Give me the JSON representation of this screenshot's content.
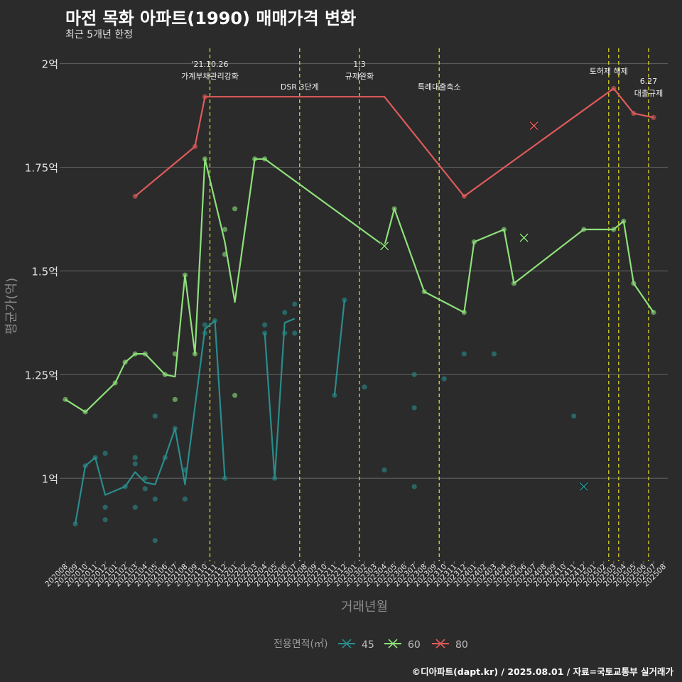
{
  "title": "마전 목화 아파트(1990) 매매가격 변화",
  "subtitle": "최근 5개년 한정",
  "caption": "©디아파트(dapt.kr) / 2025.08.01 / 자료=국토교통부 실거래가",
  "chart_data": {
    "type": "line",
    "title": "마전 목화 아파트(1990) 매매가격 변화",
    "subtitle": "최근 5개년 한정",
    "xlabel": "거래년월",
    "ylabel": "평균가(억)",
    "x_categories": [
      "202008",
      "202009",
      "202010",
      "202011",
      "202012",
      "202101",
      "202102",
      "202103",
      "202104",
      "202105",
      "202106",
      "202107",
      "202108",
      "202109",
      "202110",
      "202111",
      "202112",
      "202201",
      "202202",
      "202203",
      "202204",
      "202205",
      "202206",
      "202207",
      "202208",
      "202209",
      "202210",
      "202211",
      "202212",
      "202301",
      "202302",
      "202303",
      "202304",
      "202305",
      "202306",
      "202307",
      "202308",
      "202309",
      "202310",
      "202311",
      "202312",
      "202401",
      "202402",
      "202403",
      "202404",
      "202405",
      "202406",
      "202407",
      "202408",
      "202409",
      "202410",
      "202411",
      "202412",
      "202501",
      "202502",
      "202503",
      "202504",
      "202505",
      "202506",
      "202507",
      "202508"
    ],
    "y_ticks": [
      1,
      1.25,
      1.5,
      1.75,
      2
    ],
    "y_tick_labels": [
      "1억",
      "1.25억",
      "1.5억",
      "1.75억",
      "2억"
    ],
    "ylim": [
      0.8,
      2.03
    ],
    "grid": "horizontal",
    "legend": {
      "title": "전용면적(㎡)",
      "position": "bottom",
      "entries": [
        "45",
        "60",
        "80"
      ]
    },
    "series": [
      {
        "name": "45",
        "color": "#2a8c8c",
        "line": [
          [
            "202009",
            0.89
          ],
          [
            "202010",
            1.03
          ],
          [
            "202011",
            1.05
          ],
          [
            "202012",
            0.96
          ],
          [
            "202102",
            0.98
          ],
          [
            "202103",
            1.015
          ],
          [
            "202104",
            0.99
          ],
          [
            "202105",
            0.985
          ],
          [
            "202106",
            1.05
          ],
          [
            "202107",
            1.12
          ],
          [
            "202108",
            0.985
          ],
          [
            "202110",
            1.36
          ],
          [
            "202111",
            1.38
          ],
          [
            "202112",
            1.0
          ],
          null,
          [
            "202204",
            1.35
          ],
          [
            "202205",
            1.0
          ],
          [
            "202206",
            1.375
          ],
          [
            "202207",
            1.385
          ],
          null,
          [
            "202211",
            1.2
          ],
          [
            "202212",
            1.43
          ]
        ],
        "points": [
          [
            "202009",
            0.89
          ],
          [
            "202010",
            1.03
          ],
          [
            "202011",
            1.05
          ],
          [
            "202012",
            1.06
          ],
          [
            "202012",
            0.93
          ],
          [
            "202012",
            0.9
          ],
          [
            "202102",
            0.98
          ],
          [
            "202103",
            1.05
          ],
          [
            "202103",
            1.035
          ],
          [
            "202103",
            0.93
          ],
          [
            "202104",
            1.0
          ],
          [
            "202104",
            0.975
          ],
          [
            "202105",
            1.15
          ],
          [
            "202105",
            0.95
          ],
          [
            "202105",
            0.85
          ],
          [
            "202106",
            1.05
          ],
          [
            "202107",
            1.12
          ],
          [
            "202108",
            1.02
          ],
          [
            "202108",
            0.95
          ],
          [
            "202110",
            1.37
          ],
          [
            "202110",
            1.35
          ],
          [
            "202111",
            1.38
          ],
          [
            "202112",
            1.0
          ],
          [
            "202204",
            1.37
          ],
          [
            "202204",
            1.35
          ],
          [
            "202205",
            1.0
          ],
          [
            "202206",
            1.4
          ],
          [
            "202206",
            1.35
          ],
          [
            "202207",
            1.42
          ],
          [
            "202207",
            1.35
          ],
          [
            "202211",
            1.2
          ],
          [
            "202212",
            1.43
          ],
          [
            "202302",
            1.22
          ],
          [
            "202304",
            1.02
          ],
          [
            "202307",
            1.25
          ],
          [
            "202307",
            1.17
          ],
          [
            "202307",
            0.98
          ],
          [
            "202310",
            1.24
          ],
          [
            "202312",
            1.3
          ],
          [
            "202403",
            1.3
          ],
          [
            "202411",
            1.15
          ]
        ],
        "cancelled": [
          [
            "202412",
            0.98
          ]
        ]
      },
      {
        "name": "60",
        "color": "#8ee07a",
        "line": [
          [
            "202008",
            1.19
          ],
          [
            "202010",
            1.16
          ],
          [
            "202101",
            1.23
          ],
          [
            "202102",
            1.28
          ],
          [
            "202103",
            1.3
          ],
          [
            "202104",
            1.3
          ],
          [
            "202106",
            1.25
          ],
          [
            "202107",
            1.245
          ],
          [
            "202108",
            1.49
          ],
          [
            "202109",
            1.3
          ],
          [
            "202110",
            1.77
          ],
          [
            "202112",
            1.57
          ],
          [
            "202201",
            1.425
          ],
          [
            "202203",
            1.77
          ],
          [
            "202204",
            1.77
          ],
          [
            "202304",
            1.56
          ],
          [
            "202305",
            1.65
          ],
          [
            "202308",
            1.45
          ],
          [
            "202312",
            1.4
          ],
          [
            "202401",
            1.57
          ],
          [
            "202404",
            1.6
          ],
          [
            "202405",
            1.47
          ],
          [
            "202412",
            1.6
          ],
          [
            "202503",
            1.6
          ],
          [
            "202504",
            1.62
          ],
          [
            "202505",
            1.47
          ],
          [
            "202507",
            1.4
          ]
        ],
        "points": [
          [
            "202008",
            1.19
          ],
          [
            "202010",
            1.16
          ],
          [
            "202101",
            1.23
          ],
          [
            "202102",
            1.28
          ],
          [
            "202103",
            1.3
          ],
          [
            "202104",
            1.3
          ],
          [
            "202106",
            1.25
          ],
          [
            "202107",
            1.3
          ],
          [
            "202107",
            1.19
          ],
          [
            "202108",
            1.49
          ],
          [
            "202109",
            1.3
          ],
          [
            "202110",
            1.77
          ],
          [
            "202112",
            1.6
          ],
          [
            "202112",
            1.54
          ],
          [
            "202201",
            1.65
          ],
          [
            "202201",
            1.2
          ],
          [
            "202203",
            1.77
          ],
          [
            "202204",
            1.77
          ],
          [
            "202305",
            1.65
          ],
          [
            "202308",
            1.45
          ],
          [
            "202312",
            1.4
          ],
          [
            "202401",
            1.57
          ],
          [
            "202404",
            1.6
          ],
          [
            "202405",
            1.47
          ],
          [
            "202412",
            1.6
          ],
          [
            "202503",
            1.6
          ],
          [
            "202504",
            1.62
          ],
          [
            "202505",
            1.47
          ],
          [
            "202507",
            1.4
          ]
        ],
        "cancelled": [
          [
            "202304",
            1.56
          ],
          [
            "202406",
            1.58
          ]
        ]
      },
      {
        "name": "80",
        "color": "#e05a5a",
        "line": [
          [
            "202103",
            1.68
          ],
          [
            "202109",
            1.8
          ],
          [
            "202110",
            1.92
          ],
          [
            "202304",
            1.92
          ],
          [
            "202312",
            1.68
          ],
          [
            "202503",
            1.94
          ],
          [
            "202505",
            1.88
          ],
          [
            "202507",
            1.87
          ]
        ],
        "points": [
          [
            "202103",
            1.68
          ],
          [
            "202109",
            1.8
          ],
          [
            "202110",
            1.92
          ],
          [
            "202312",
            1.68
          ],
          [
            "202503",
            1.94
          ],
          [
            "202505",
            1.88
          ],
          [
            "202507",
            1.87
          ]
        ],
        "cancelled": [
          [
            "202407",
            1.85
          ]
        ]
      }
    ],
    "events": [
      {
        "month": "202110",
        "x": 14.5,
        "label": [
          "'21.10.26",
          "가계부채관리강화"
        ]
      },
      {
        "month": "202207",
        "x": 23.5,
        "label": [
          "DSR 3단계"
        ]
      },
      {
        "month": "202301",
        "x": 29.5,
        "label": [
          "1.3",
          "규제완화"
        ]
      },
      {
        "month": "202309",
        "x": 37.5,
        "label": [
          "특례대출축소"
        ]
      },
      {
        "month": "202502",
        "x": 54.5,
        "label": [
          "토허제 해제"
        ]
      },
      {
        "month": "202503",
        "x": 55.5,
        "label": []
      },
      {
        "month": "202506",
        "x": 58.5,
        "label": [
          "6.27",
          "대출규제"
        ]
      }
    ]
  }
}
